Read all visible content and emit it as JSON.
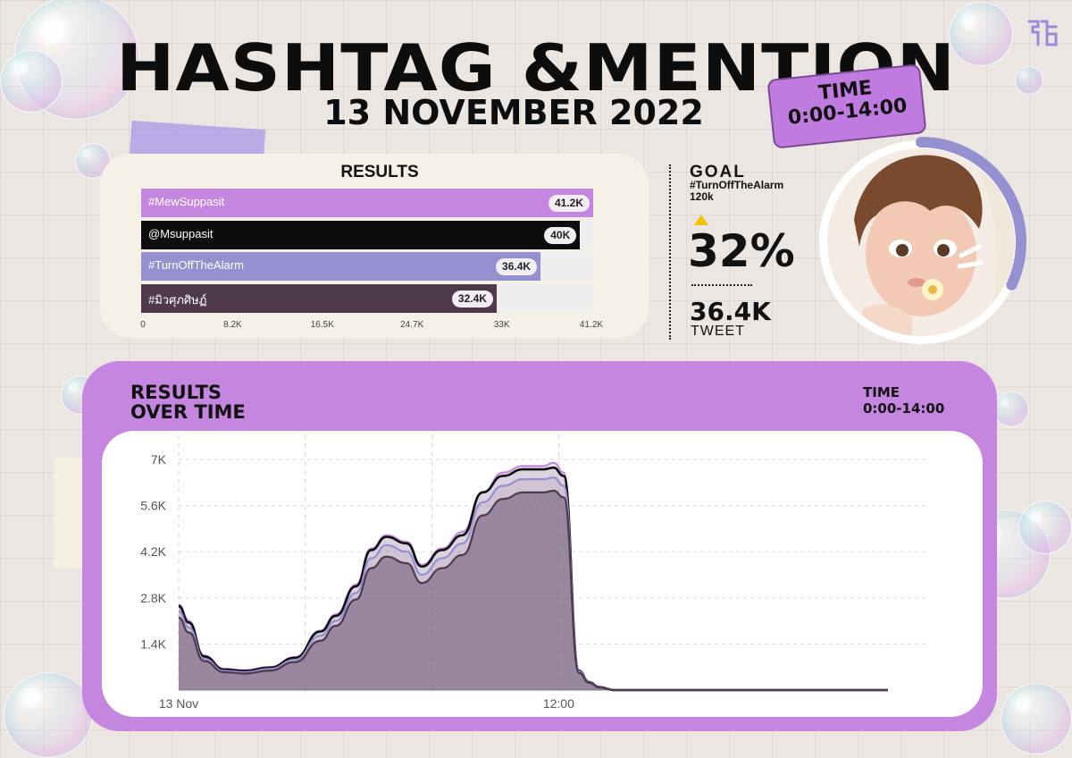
{
  "header": {
    "title": "HASHTAG &MENTION",
    "date": "13 NOVEMBER 2022",
    "time_label": "TIME",
    "time_range": "0:00-14:00"
  },
  "results": {
    "title": "RESULTS"
  },
  "goal": {
    "label": "GOAL",
    "hashtag": "#TurnOffTheAlarm",
    "target": "120k",
    "percent": "32%",
    "tweet_count": "36.4K",
    "tweet_label": "TWEET",
    "progress_fraction": 0.32
  },
  "over_time": {
    "title_line1": "RESULTS",
    "title_line2": "OVER TIME",
    "time_label": "TIME",
    "time_range": "0:00-14:00"
  },
  "colors": {
    "purple": "#c586e0",
    "lavender": "#9590d0",
    "black": "#0d0d0d",
    "plum": "#4f3a4c",
    "gold": "#f2c300"
  },
  "icons": {
    "logo": "brand-logo-icon",
    "avatar": "avatar-image"
  },
  "chart_data": [
    {
      "type": "bar",
      "orientation": "horizontal",
      "title": "RESULTS",
      "categories": [
        "#MewSuppasit",
        "@Msuppasit",
        "#TurnOffTheAlarm",
        "#มิวศุภศิษฏ์"
      ],
      "values": [
        41200,
        40000,
        36400,
        32400
      ],
      "value_labels": [
        "41.2K",
        "40K",
        "36.4K",
        "32.4K"
      ],
      "colors": [
        "#c586e0",
        "#0d0d0d",
        "#9590d0",
        "#4f3a4c"
      ],
      "x_ticks": [
        "0",
        "8.2K",
        "16.5K",
        "24.7K",
        "33K",
        "41.2K"
      ],
      "xlim": [
        0,
        41200
      ],
      "grid": false
    },
    {
      "type": "area",
      "title": "RESULTS OVER TIME",
      "x_range_hours": [
        0,
        14
      ],
      "x_ticks": [
        {
          "x": 0,
          "label": "13 Nov"
        },
        {
          "x": 7.5,
          "label": "12:00"
        }
      ],
      "y_ticks": [
        {
          "value": 1400,
          "label": "1.4K"
        },
        {
          "value": 2800,
          "label": "2.8K"
        },
        {
          "value": 4200,
          "label": "4.2K"
        },
        {
          "value": 5600,
          "label": "5.6K"
        },
        {
          "value": 7000,
          "label": "7K"
        }
      ],
      "ylim": [
        0,
        7000
      ],
      "grid": true,
      "x": [
        0,
        0.2,
        0.5,
        0.9,
        1.3,
        1.8,
        2.3,
        2.8,
        3.1,
        3.5,
        3.8,
        4.1,
        4.5,
        4.8,
        5.2,
        5.6,
        6.0,
        6.4,
        6.8,
        7.2,
        7.4,
        7.6,
        7.9,
        8.1,
        8.3,
        8.6,
        9.0,
        10.0,
        12.0,
        14.0
      ],
      "series": [
        {
          "color": "#c586e0",
          "values": [
            2600,
            2100,
            1050,
            650,
            600,
            700,
            1000,
            1800,
            2300,
            3200,
            4300,
            4700,
            4500,
            3800,
            4300,
            4800,
            6000,
            6600,
            6800,
            6800,
            6900,
            6600,
            600,
            250,
            100,
            0,
            0,
            0,
            0,
            0
          ]
        },
        {
          "color": "#0d0d0d",
          "values": [
            2550,
            2050,
            1020,
            620,
            580,
            680,
            980,
            1780,
            2250,
            3150,
            4250,
            4650,
            4450,
            3750,
            4250,
            4700,
            6000,
            6500,
            6700,
            6700,
            6750,
            6500,
            580,
            240,
            90,
            0,
            0,
            0,
            0,
            0
          ]
        },
        {
          "color": "#9590d0",
          "values": [
            2400,
            1900,
            950,
            580,
            540,
            640,
            920,
            1650,
            2100,
            2950,
            4000,
            4400,
            4200,
            3500,
            4000,
            4450,
            5700,
            6200,
            6400,
            6400,
            6450,
            6200,
            560,
            230,
            85,
            0,
            0,
            0,
            0,
            0
          ]
        },
        {
          "color": "#4f3a4c",
          "values": [
            2200,
            1750,
            880,
            540,
            500,
            590,
            850,
            1500,
            1950,
            2750,
            3700,
            4050,
            3850,
            3250,
            3700,
            4100,
            5300,
            5800,
            6000,
            6000,
            6050,
            5850,
            520,
            220,
            80,
            0,
            0,
            0,
            0,
            0
          ]
        }
      ]
    }
  ]
}
